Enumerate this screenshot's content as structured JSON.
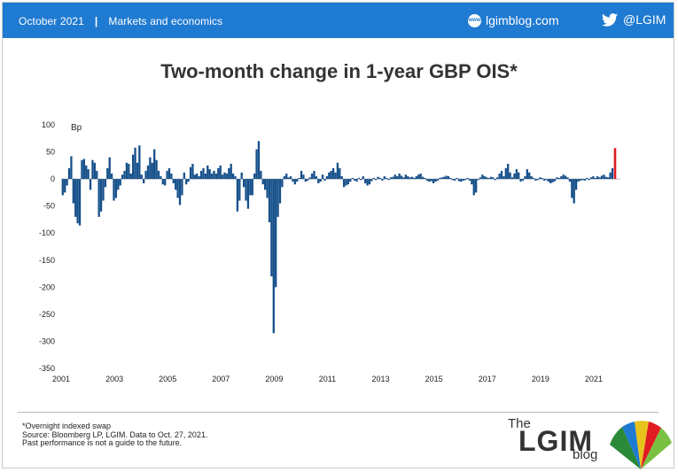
{
  "header": {
    "date": "October 2021",
    "separator": "|",
    "category": "Markets and economics",
    "site": "lgimblog.com",
    "globe_text": "www",
    "twitter": "@LGIM"
  },
  "chart_data": {
    "type": "bar",
    "title": "Two-month change in 1-year GBP OIS*",
    "ylabel": "Bp",
    "ylim": [
      -350,
      100
    ],
    "yticks": [
      100,
      50,
      0,
      -50,
      -100,
      -150,
      -200,
      -250,
      -300,
      -350
    ],
    "xlim": [
      2001.0,
      2022.0
    ],
    "xticks": [
      "2001",
      "2003",
      "2005",
      "2007",
      "2009",
      "2011",
      "2013",
      "2015",
      "2017",
      "2019",
      "2021"
    ],
    "colors": {
      "bars": "#16508a",
      "highlight": "#e01b22"
    },
    "highlight": {
      "x": 2021.8,
      "value": 57
    },
    "series": [
      {
        "values": [
          [
            2001.06,
            -30
          ],
          [
            2001.14,
            -25
          ],
          [
            2001.22,
            -12
          ],
          [
            2001.3,
            20
          ],
          [
            2001.38,
            42
          ],
          [
            2001.46,
            -45
          ],
          [
            2001.54,
            -70
          ],
          [
            2001.62,
            -82
          ],
          [
            2001.7,
            -86
          ],
          [
            2001.78,
            35
          ],
          [
            2001.86,
            37
          ],
          [
            2001.94,
            25
          ],
          [
            2002.02,
            18
          ],
          [
            2002.1,
            -20
          ],
          [
            2002.18,
            35
          ],
          [
            2002.26,
            30
          ],
          [
            2002.34,
            15
          ],
          [
            2002.42,
            -70
          ],
          [
            2002.5,
            -60
          ],
          [
            2002.58,
            -40
          ],
          [
            2002.66,
            -15
          ],
          [
            2002.74,
            20
          ],
          [
            2002.82,
            40
          ],
          [
            2002.9,
            10
          ],
          [
            2002.98,
            -40
          ],
          [
            2003.06,
            -35
          ],
          [
            2003.14,
            -20
          ],
          [
            2003.22,
            -12
          ],
          [
            2003.3,
            8
          ],
          [
            2003.38,
            15
          ],
          [
            2003.46,
            30
          ],
          [
            2003.54,
            28
          ],
          [
            2003.62,
            10
          ],
          [
            2003.7,
            45
          ],
          [
            2003.78,
            58
          ],
          [
            2003.86,
            30
          ],
          [
            2003.94,
            62
          ],
          [
            2004.02,
            8
          ],
          [
            2004.1,
            -8
          ],
          [
            2004.18,
            15
          ],
          [
            2004.26,
            25
          ],
          [
            2004.34,
            40
          ],
          [
            2004.42,
            30
          ],
          [
            2004.5,
            55
          ],
          [
            2004.58,
            35
          ],
          [
            2004.66,
            15
          ],
          [
            2004.74,
            5
          ],
          [
            2004.82,
            -10
          ],
          [
            2004.9,
            -12
          ],
          [
            2004.98,
            15
          ],
          [
            2005.06,
            20
          ],
          [
            2005.14,
            10
          ],
          [
            2005.22,
            -8
          ],
          [
            2005.3,
            -20
          ],
          [
            2005.38,
            -35
          ],
          [
            2005.46,
            -48
          ],
          [
            2005.54,
            -30
          ],
          [
            2005.62,
            12
          ],
          [
            2005.7,
            -10
          ],
          [
            2005.78,
            -5
          ],
          [
            2005.86,
            22
          ],
          [
            2005.94,
            28
          ],
          [
            2006.02,
            8
          ],
          [
            2006.1,
            10
          ],
          [
            2006.18,
            5
          ],
          [
            2006.26,
            15
          ],
          [
            2006.34,
            20
          ],
          [
            2006.42,
            10
          ],
          [
            2006.5,
            25
          ],
          [
            2006.58,
            18
          ],
          [
            2006.66,
            10
          ],
          [
            2006.74,
            15
          ],
          [
            2006.82,
            10
          ],
          [
            2006.9,
            20
          ],
          [
            2006.98,
            25
          ],
          [
            2007.06,
            8
          ],
          [
            2007.14,
            12
          ],
          [
            2007.22,
            10
          ],
          [
            2007.3,
            20
          ],
          [
            2007.38,
            28
          ],
          [
            2007.46,
            10
          ],
          [
            2007.54,
            5
          ],
          [
            2007.62,
            -60
          ],
          [
            2007.7,
            -40
          ],
          [
            2007.78,
            12
          ],
          [
            2007.86,
            -15
          ],
          [
            2007.94,
            -40
          ],
          [
            2008.02,
            -55
          ],
          [
            2008.1,
            -30
          ],
          [
            2008.18,
            -30
          ],
          [
            2008.26,
            10
          ],
          [
            2008.34,
            55
          ],
          [
            2008.42,
            70
          ],
          [
            2008.5,
            15
          ],
          [
            2008.58,
            -10
          ],
          [
            2008.66,
            -20
          ],
          [
            2008.74,
            -35
          ],
          [
            2008.82,
            -80
          ],
          [
            2008.9,
            -180
          ],
          [
            2008.98,
            -285
          ],
          [
            2009.06,
            -200
          ],
          [
            2009.14,
            -70
          ],
          [
            2009.22,
            -45
          ],
          [
            2009.3,
            -15
          ],
          [
            2009.38,
            5
          ],
          [
            2009.46,
            10
          ],
          [
            2009.54,
            3
          ],
          [
            2009.62,
            5
          ],
          [
            2009.7,
            -5
          ],
          [
            2009.78,
            -10
          ],
          [
            2009.86,
            -5
          ],
          [
            2009.94,
            2
          ],
          [
            2010.02,
            15
          ],
          [
            2010.1,
            8
          ],
          [
            2010.18,
            -5
          ],
          [
            2010.26,
            -3
          ],
          [
            2010.34,
            3
          ],
          [
            2010.42,
            10
          ],
          [
            2010.5,
            15
          ],
          [
            2010.58,
            5
          ],
          [
            2010.66,
            -8
          ],
          [
            2010.74,
            -5
          ],
          [
            2010.82,
            8
          ],
          [
            2010.9,
            -3
          ],
          [
            2010.98,
            5
          ],
          [
            2011.06,
            12
          ],
          [
            2011.14,
            15
          ],
          [
            2011.22,
            20
          ],
          [
            2011.3,
            12
          ],
          [
            2011.38,
            30
          ],
          [
            2011.46,
            20
          ],
          [
            2011.54,
            5
          ],
          [
            2011.62,
            -15
          ],
          [
            2011.7,
            -12
          ],
          [
            2011.78,
            -10
          ],
          [
            2011.86,
            -5
          ],
          [
            2011.94,
            2
          ],
          [
            2012.02,
            -3
          ],
          [
            2012.1,
            -5
          ],
          [
            2012.18,
            2
          ],
          [
            2012.26,
            -2
          ],
          [
            2012.34,
            5
          ],
          [
            2012.42,
            -8
          ],
          [
            2012.5,
            -12
          ],
          [
            2012.58,
            -10
          ],
          [
            2012.66,
            -4
          ],
          [
            2012.74,
            2
          ],
          [
            2012.82,
            -2
          ],
          [
            2012.9,
            4
          ],
          [
            2012.98,
            2
          ],
          [
            2013.06,
            -3
          ],
          [
            2013.14,
            5
          ],
          [
            2013.22,
            2
          ],
          [
            2013.3,
            -2
          ],
          [
            2013.38,
            3
          ],
          [
            2013.46,
            4
          ],
          [
            2013.54,
            8
          ],
          [
            2013.62,
            5
          ],
          [
            2013.7,
            10
          ],
          [
            2013.78,
            6
          ],
          [
            2013.86,
            3
          ],
          [
            2013.94,
            8
          ],
          [
            2014.02,
            5
          ],
          [
            2014.1,
            3
          ],
          [
            2014.18,
            4
          ],
          [
            2014.26,
            2
          ],
          [
            2014.34,
            5
          ],
          [
            2014.42,
            8
          ],
          [
            2014.5,
            10
          ],
          [
            2014.58,
            4
          ],
          [
            2014.66,
            2
          ],
          [
            2014.74,
            -3
          ],
          [
            2014.82,
            -5
          ],
          [
            2014.9,
            -4
          ],
          [
            2014.98,
            -8
          ],
          [
            2015.06,
            -5
          ],
          [
            2015.14,
            -3
          ],
          [
            2015.22,
            2
          ],
          [
            2015.3,
            3
          ],
          [
            2015.38,
            4
          ],
          [
            2015.46,
            6
          ],
          [
            2015.54,
            5
          ],
          [
            2015.62,
            2
          ],
          [
            2015.7,
            -2
          ],
          [
            2015.78,
            -3
          ],
          [
            2015.86,
            2
          ],
          [
            2015.94,
            -4
          ],
          [
            2016.02,
            -5
          ],
          [
            2016.1,
            -3
          ],
          [
            2016.18,
            -2
          ],
          [
            2016.26,
            2
          ],
          [
            2016.34,
            -3
          ],
          [
            2016.42,
            -10
          ],
          [
            2016.5,
            -30
          ],
          [
            2016.58,
            -25
          ],
          [
            2016.66,
            -2
          ],
          [
            2016.74,
            3
          ],
          [
            2016.82,
            8
          ],
          [
            2016.9,
            5
          ],
          [
            2016.98,
            3
          ],
          [
            2017.06,
            2
          ],
          [
            2017.14,
            4
          ],
          [
            2017.22,
            3
          ],
          [
            2017.3,
            -2
          ],
          [
            2017.38,
            3
          ],
          [
            2017.46,
            10
          ],
          [
            2017.54,
            15
          ],
          [
            2017.62,
            5
          ],
          [
            2017.7,
            20
          ],
          [
            2017.78,
            28
          ],
          [
            2017.86,
            12
          ],
          [
            2017.94,
            3
          ],
          [
            2018.02,
            10
          ],
          [
            2018.1,
            18
          ],
          [
            2018.18,
            12
          ],
          [
            2018.26,
            -5
          ],
          [
            2018.34,
            -3
          ],
          [
            2018.42,
            5
          ],
          [
            2018.5,
            18
          ],
          [
            2018.58,
            12
          ],
          [
            2018.66,
            5
          ],
          [
            2018.74,
            2
          ],
          [
            2018.82,
            -3
          ],
          [
            2018.9,
            -2
          ],
          [
            2018.98,
            3
          ],
          [
            2019.06,
            2
          ],
          [
            2019.14,
            -3
          ],
          [
            2019.22,
            -2
          ],
          [
            2019.3,
            -5
          ],
          [
            2019.38,
            -8
          ],
          [
            2019.46,
            -6
          ],
          [
            2019.54,
            -4
          ],
          [
            2019.62,
            3
          ],
          [
            2019.7,
            2
          ],
          [
            2019.78,
            5
          ],
          [
            2019.86,
            8
          ],
          [
            2019.94,
            6
          ],
          [
            2020.02,
            3
          ],
          [
            2020.1,
            -5
          ],
          [
            2020.18,
            -35
          ],
          [
            2020.26,
            -45
          ],
          [
            2020.34,
            -20
          ],
          [
            2020.42,
            -5
          ],
          [
            2020.5,
            -3
          ],
          [
            2020.58,
            -2
          ],
          [
            2020.66,
            -3
          ],
          [
            2020.74,
            2
          ],
          [
            2020.82,
            -2
          ],
          [
            2020.9,
            3
          ],
          [
            2020.98,
            5
          ],
          [
            2021.06,
            2
          ],
          [
            2021.14,
            5
          ],
          [
            2021.22,
            3
          ],
          [
            2021.3,
            6
          ],
          [
            2021.38,
            8
          ],
          [
            2021.46,
            4
          ],
          [
            2021.54,
            3
          ],
          [
            2021.62,
            12
          ],
          [
            2021.7,
            20
          ]
        ]
      }
    ]
  },
  "footnotes": [
    "*Overnight indexed swap",
    "Source: Bloomberg LP, LGIM. Data to Oct. 27, 2021.",
    "Past performance is not a guide to the future."
  ],
  "logo": {
    "the": "The",
    "name": "LGIM",
    "blog": "blog"
  }
}
